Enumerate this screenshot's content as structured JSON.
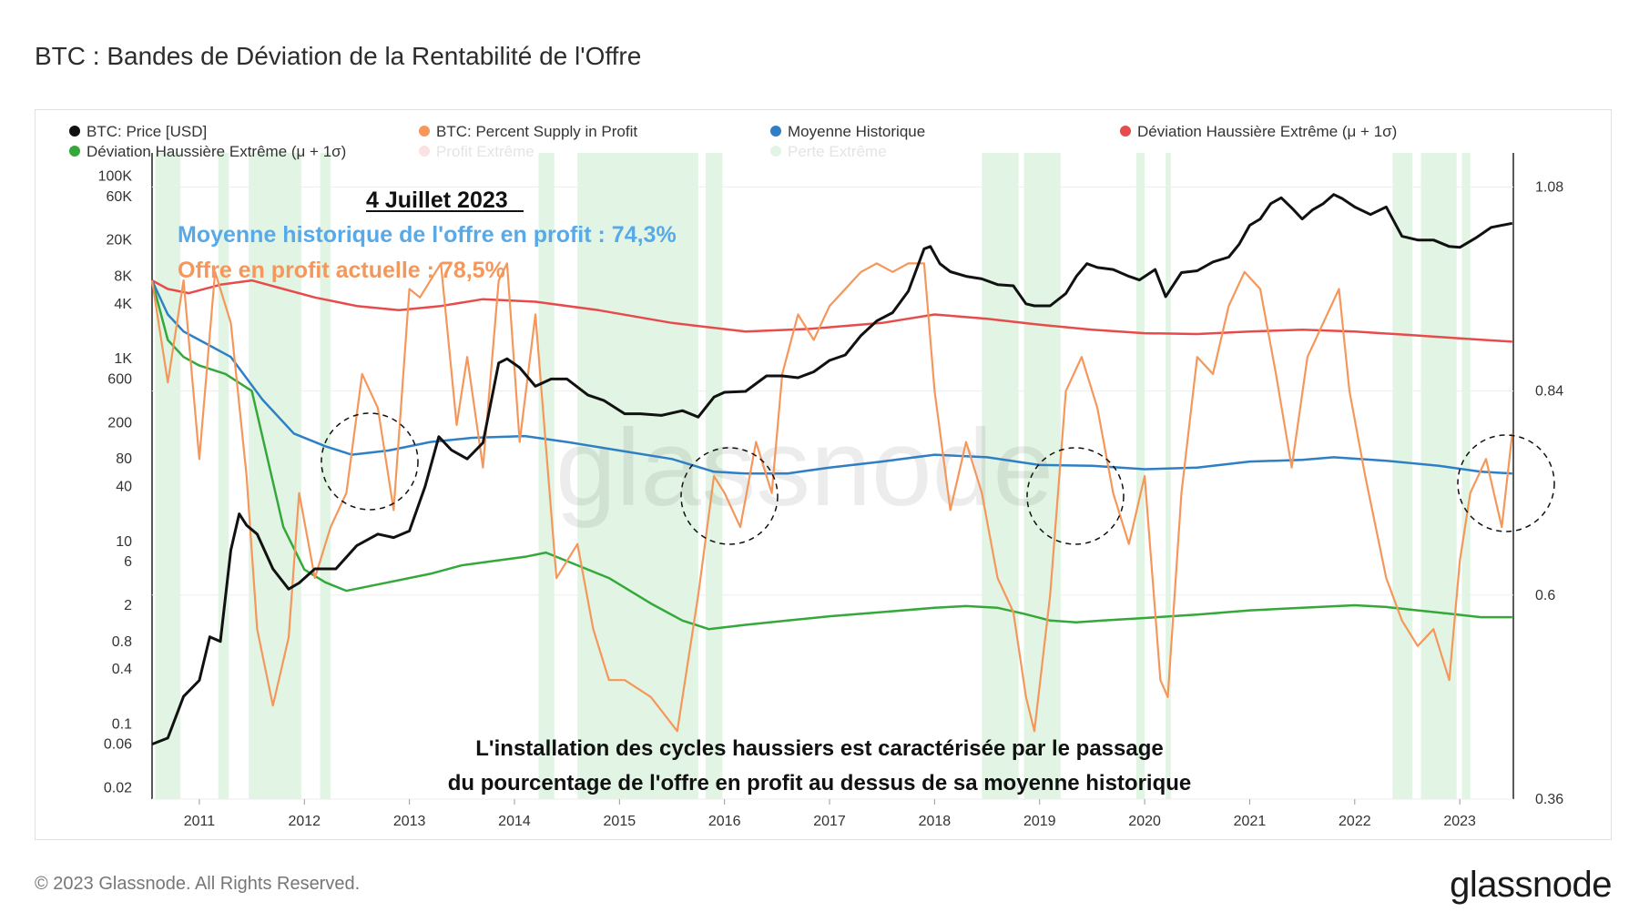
{
  "title": "BTC : Bandes de Déviation de la Rentabilité de l'Offre",
  "footer": {
    "copyright": "© 2023 Glassnode. All Rights Reserved.",
    "logo": "glassnode"
  },
  "watermark": "glassnode",
  "annotations": {
    "date": "4 Juillet 2023",
    "mean_line": "Moyenne historique de l'offre en profit : 74,3%",
    "current_line": "Offre en profit actuelle : 78,5%",
    "bottom_line1": "L'installation des cycles haussiers est caractérisée par le passage",
    "bottom_line2": "du pourcentage de l'offre en profit au dessus de sa moyenne historique"
  },
  "legend": [
    {
      "label": "BTC: Price [USD]",
      "color": "#111111"
    },
    {
      "label": "BTC: Percent Supply in Profit",
      "color": "#f5975a"
    },
    {
      "label": "Moyenne Historique",
      "color": "#2f7fc6"
    },
    {
      "label": "Déviation Haussière Extrême (μ + 1σ)",
      "color": "#e84b4b"
    },
    {
      "label": "Déviation Haussière Extrême (μ + 1σ)",
      "color": "#35a83a"
    },
    {
      "label": "Profit Extrême",
      "color": "#fbe1e1"
    },
    {
      "label": "Perte Extrême",
      "color": "#e2f5e4"
    }
  ],
  "chart_data": {
    "type": "line",
    "title": "BTC : Bandes de Déviation de la Rentabilité de l'Offre",
    "x_ticks": [
      "2011",
      "2012",
      "2013",
      "2014",
      "2015",
      "2016",
      "2017",
      "2018",
      "2019",
      "2020",
      "2021",
      "2022",
      "2023"
    ],
    "x_range": [
      2010.55,
      2023.51
    ],
    "y_left": {
      "label": "Price [USD]",
      "scale": "log",
      "range": [
        0.015,
        180000
      ],
      "ticks": [
        "100K",
        "60K",
        "20K",
        "8K",
        "4K",
        "1K",
        "600",
        "200",
        "80",
        "40",
        "10",
        "6",
        "2",
        "0.8",
        "0.4",
        "0.1",
        "0.06",
        "0.02"
      ],
      "tick_values": [
        100000,
        60000,
        20000,
        8000,
        4000,
        1000,
        600,
        200,
        80,
        40,
        10,
        6,
        2,
        0.8,
        0.4,
        0.1,
        0.06,
        0.02
      ]
    },
    "y_right": {
      "label": "Percent Supply in Profit",
      "range": [
        0.36,
        1.12
      ],
      "ticks": [
        "1.08",
        "0.84",
        "0.6",
        "0.36"
      ],
      "tick_values": [
        1.08,
        0.84,
        0.6,
        0.36
      ]
    },
    "series": [
      {
        "name": "BTC: Price [USD]",
        "axis": "left",
        "color": "#111111",
        "x": [
          2010.55,
          2010.7,
          2010.85,
          2011.0,
          2011.1,
          2011.2,
          2011.3,
          2011.38,
          2011.45,
          2011.55,
          2011.7,
          2011.85,
          2011.95,
          2012.1,
          2012.3,
          2012.5,
          2012.7,
          2012.85,
          2013.0,
          2013.15,
          2013.28,
          2013.4,
          2013.55,
          2013.7,
          2013.85,
          2013.93,
          2014.05,
          2014.2,
          2014.35,
          2014.5,
          2014.7,
          2014.85,
          2015.05,
          2015.2,
          2015.4,
          2015.6,
          2015.75,
          2015.9,
          2016.0,
          2016.2,
          2016.4,
          2016.55,
          2016.7,
          2016.85,
          2017.0,
          2017.15,
          2017.3,
          2017.45,
          2017.6,
          2017.75,
          2017.9,
          2017.96,
          2018.05,
          2018.15,
          2018.3,
          2018.45,
          2018.6,
          2018.75,
          2018.87,
          2018.95,
          2019.1,
          2019.25,
          2019.35,
          2019.45,
          2019.55,
          2019.7,
          2019.85,
          2019.95,
          2020.1,
          2020.2,
          2020.35,
          2020.5,
          2020.65,
          2020.8,
          2020.9,
          2021.0,
          2021.1,
          2021.2,
          2021.3,
          2021.4,
          2021.5,
          2021.6,
          2021.7,
          2021.8,
          2021.88,
          2022.0,
          2022.15,
          2022.3,
          2022.45,
          2022.6,
          2022.75,
          2022.9,
          2023.0,
          2023.15,
          2023.3,
          2023.5
        ],
        "values": [
          0.06,
          0.07,
          0.2,
          0.3,
          0.9,
          0.8,
          8,
          20,
          15,
          12,
          5,
          3,
          3.5,
          5,
          5,
          9,
          12,
          11,
          13,
          40,
          140,
          100,
          80,
          120,
          900,
          1000,
          800,
          500,
          600,
          600,
          400,
          350,
          250,
          250,
          240,
          270,
          230,
          380,
          430,
          440,
          650,
          650,
          620,
          720,
          960,
          1100,
          1800,
          2600,
          3200,
          5500,
          16000,
          17000,
          11000,
          9000,
          8000,
          7500,
          6500,
          6300,
          4000,
          3800,
          3800,
          5200,
          8000,
          11000,
          10000,
          9500,
          8000,
          7300,
          9500,
          4800,
          8800,
          9200,
          11500,
          13000,
          18000,
          29000,
          34000,
          50000,
          58000,
          45000,
          34000,
          43000,
          50000,
          63000,
          57000,
          46000,
          38000,
          46000,
          22000,
          20000,
          20000,
          17000,
          16600,
          21000,
          27500,
          30500
        ]
      },
      {
        "name": "BTC: Percent Supply in Profit",
        "axis": "right",
        "color": "#f5975a",
        "x": [
          2010.55,
          2010.7,
          2010.85,
          2011.0,
          2011.15,
          2011.3,
          2011.45,
          2011.55,
          2011.7,
          2011.85,
          2011.95,
          2012.1,
          2012.25,
          2012.4,
          2012.55,
          2012.7,
          2012.85,
          2013.0,
          2013.1,
          2013.3,
          2013.45,
          2013.55,
          2013.7,
          2013.85,
          2013.93,
          2014.05,
          2014.2,
          2014.4,
          2014.6,
          2014.75,
          2014.9,
          2015.05,
          2015.3,
          2015.55,
          2015.75,
          2015.9,
          2016.0,
          2016.15,
          2016.3,
          2016.45,
          2016.55,
          2016.7,
          2016.85,
          2017.0,
          2017.15,
          2017.3,
          2017.45,
          2017.6,
          2017.75,
          2017.9,
          2018.0,
          2018.15,
          2018.3,
          2018.45,
          2018.6,
          2018.75,
          2018.87,
          2018.95,
          2019.1,
          2019.25,
          2019.4,
          2019.55,
          2019.7,
          2019.85,
          2020.0,
          2020.15,
          2020.22,
          2020.35,
          2020.5,
          2020.65,
          2020.8,
          2020.95,
          2021.1,
          2021.25,
          2021.4,
          2021.55,
          2021.7,
          2021.85,
          2021.95,
          2022.1,
          2022.3,
          2022.45,
          2022.6,
          2022.75,
          2022.9,
          2023.0,
          2023.1,
          2023.25,
          2023.4,
          2023.5
        ],
        "values": [
          0.97,
          0.85,
          0.97,
          0.76,
          0.98,
          0.92,
          0.74,
          0.56,
          0.47,
          0.55,
          0.72,
          0.62,
          0.68,
          0.72,
          0.86,
          0.82,
          0.7,
          0.96,
          0.95,
          0.99,
          0.8,
          0.88,
          0.75,
          0.97,
          0.99,
          0.78,
          0.93,
          0.62,
          0.66,
          0.56,
          0.5,
          0.5,
          0.48,
          0.44,
          0.6,
          0.74,
          0.72,
          0.68,
          0.78,
          0.72,
          0.86,
          0.93,
          0.9,
          0.94,
          0.96,
          0.98,
          0.99,
          0.98,
          0.99,
          0.99,
          0.84,
          0.7,
          0.78,
          0.72,
          0.62,
          0.58,
          0.48,
          0.44,
          0.6,
          0.84,
          0.88,
          0.82,
          0.72,
          0.66,
          0.74,
          0.5,
          0.48,
          0.72,
          0.88,
          0.86,
          0.94,
          0.98,
          0.96,
          0.86,
          0.75,
          0.88,
          0.92,
          0.96,
          0.84,
          0.74,
          0.62,
          0.57,
          0.54,
          0.56,
          0.5,
          0.64,
          0.72,
          0.76,
          0.68,
          0.79
        ]
      },
      {
        "name": "Moyenne Historique",
        "axis": "right",
        "color": "#2f7fc6",
        "x": [
          2010.55,
          2010.7,
          2010.85,
          2011.0,
          2011.3,
          2011.6,
          2011.9,
          2012.2,
          2012.45,
          2012.8,
          2013.2,
          2013.6,
          2014.1,
          2014.5,
          2015.0,
          2015.5,
          2015.9,
          2016.2,
          2016.6,
          2017.0,
          2017.5,
          2018.0,
          2018.5,
          2019.0,
          2019.5,
          2020.0,
          2020.5,
          2021.0,
          2021.5,
          2021.8,
          2022.3,
          2022.8,
          2023.2,
          2023.5
        ],
        "values": [
          0.97,
          0.93,
          0.91,
          0.9,
          0.88,
          0.83,
          0.79,
          0.775,
          0.765,
          0.77,
          0.78,
          0.785,
          0.787,
          0.78,
          0.77,
          0.76,
          0.745,
          0.743,
          0.743,
          0.75,
          0.757,
          0.765,
          0.762,
          0.753,
          0.752,
          0.748,
          0.75,
          0.757,
          0.759,
          0.762,
          0.758,
          0.752,
          0.745,
          0.743
        ]
      },
      {
        "name": "Déviation Haussière Extrême (μ + 1σ) rouge",
        "axis": "right",
        "color": "#e84b4b",
        "x": [
          2010.55,
          2010.7,
          2010.9,
          2011.2,
          2011.5,
          2011.8,
          2012.1,
          2012.5,
          2012.9,
          2013.3,
          2013.7,
          2014.2,
          2014.8,
          2015.5,
          2016.2,
          2016.8,
          2017.5,
          2018.0,
          2018.5,
          2019.0,
          2019.5,
          2020.0,
          2020.5,
          2021.0,
          2021.5,
          2022.0,
          2022.5,
          2023.0,
          2023.5
        ],
        "values": [
          0.97,
          0.96,
          0.955,
          0.965,
          0.97,
          0.96,
          0.95,
          0.94,
          0.935,
          0.94,
          0.948,
          0.945,
          0.935,
          0.92,
          0.91,
          0.913,
          0.92,
          0.93,
          0.925,
          0.918,
          0.912,
          0.908,
          0.907,
          0.91,
          0.912,
          0.91,
          0.906,
          0.902,
          0.898
        ]
      },
      {
        "name": "Déviation Haussière Extrême (μ + 1σ) verte",
        "axis": "right",
        "color": "#35a83a",
        "x": [
          2010.55,
          2010.7,
          2010.85,
          2011.0,
          2011.25,
          2011.5,
          2011.65,
          2011.8,
          2012.0,
          2012.2,
          2012.4,
          2012.8,
          2013.2,
          2013.5,
          2013.8,
          2014.1,
          2014.3,
          2014.6,
          2014.9,
          2015.3,
          2015.6,
          2015.85,
          2016.2,
          2016.6,
          2017.0,
          2017.5,
          2018.0,
          2018.3,
          2018.6,
          2018.85,
          2019.1,
          2019.35,
          2019.6,
          2020.0,
          2020.5,
          2021.0,
          2021.5,
          2022.0,
          2022.3,
          2022.6,
          2022.9,
          2023.2,
          2023.5
        ],
        "values": [
          0.97,
          0.9,
          0.88,
          0.87,
          0.86,
          0.84,
          0.76,
          0.68,
          0.63,
          0.615,
          0.605,
          0.615,
          0.625,
          0.635,
          0.64,
          0.645,
          0.65,
          0.635,
          0.62,
          0.59,
          0.57,
          0.56,
          0.565,
          0.57,
          0.575,
          0.58,
          0.585,
          0.587,
          0.585,
          0.578,
          0.57,
          0.568,
          0.57,
          0.573,
          0.577,
          0.582,
          0.585,
          0.588,
          0.586,
          0.582,
          0.578,
          0.574,
          0.574
        ]
      }
    ],
    "extreme_loss_periods": [
      [
        2010.58,
        2010.82
      ],
      [
        2011.18,
        2011.28
      ],
      [
        2011.47,
        2011.97
      ],
      [
        2012.15,
        2012.25
      ],
      [
        2014.23,
        2014.38
      ],
      [
        2014.6,
        2015.75
      ],
      [
        2015.82,
        2015.98
      ],
      [
        2018.45,
        2018.8
      ],
      [
        2018.85,
        2019.2
      ],
      [
        2019.92,
        2020.0
      ],
      [
        2020.2,
        2020.25
      ],
      [
        2022.36,
        2022.55
      ],
      [
        2022.63,
        2022.97
      ],
      [
        2023.02,
        2023.1
      ]
    ],
    "legend_position": "top"
  }
}
